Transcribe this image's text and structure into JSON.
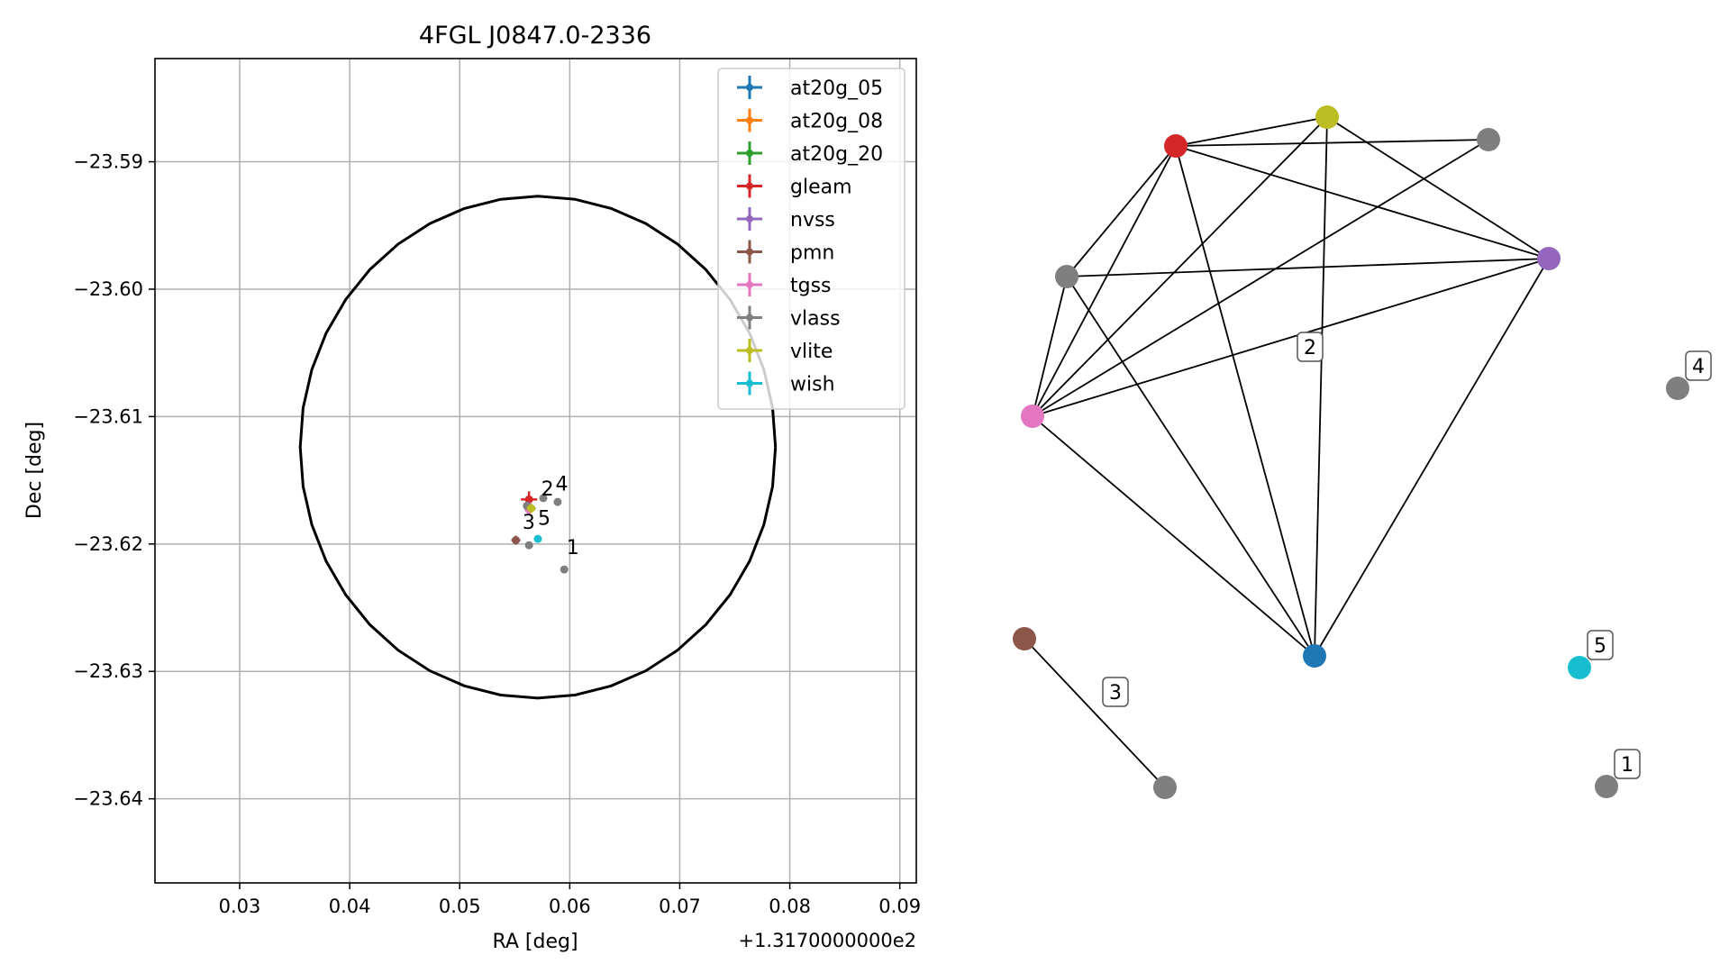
{
  "chart_data": [
    {
      "type": "scatter",
      "title": "4FGL J0847.0-2336",
      "xlabel": "RA [deg]",
      "ylabel": "Dec [deg]",
      "x_offset_label": "+1.3170000000e2",
      "xlim": [
        0.0223,
        0.0915
      ],
      "ylim": [
        -23.6466,
        -23.5819
      ],
      "xticks": [
        0.03,
        0.04,
        0.05,
        0.06,
        0.07,
        0.08,
        0.09
      ],
      "xtick_labels": [
        "0.03",
        "0.04",
        "0.05",
        "0.06",
        "0.07",
        "0.08",
        "0.09"
      ],
      "yticks": [
        -23.59,
        -23.6,
        -23.61,
        -23.62,
        -23.63,
        -23.64
      ],
      "ytick_labels": [
        "−23.59",
        "−23.60",
        "−23.61",
        "−23.62",
        "−23.63",
        "−23.64"
      ],
      "grid": true,
      "legend_position": "top-right",
      "ellipse": {
        "center_x": 0.0571,
        "center_y": -23.6124,
        "semi_x": 0.0216,
        "semi_y": 0.0197
      },
      "series": [
        {
          "name": "at20g_05",
          "color": "#1f77b4",
          "points": []
        },
        {
          "name": "at20g_08",
          "color": "#ff7f0e",
          "points": []
        },
        {
          "name": "at20g_20",
          "color": "#2ca02c",
          "points": []
        },
        {
          "name": "gleam",
          "color": "#d62728",
          "points": [
            {
              "x": 0.0563,
              "y": -23.6165
            }
          ]
        },
        {
          "name": "nvss",
          "color": "#9467bd",
          "points": [
            {
              "x": 0.0562,
              "y": -23.617
            }
          ]
        },
        {
          "name": "pmn",
          "color": "#8c564b",
          "points": [
            {
              "x": 0.0551,
              "y": -23.6197
            }
          ]
        },
        {
          "name": "tgss",
          "color": "#e377c2",
          "points": [
            {
              "x": 0.0563,
              "y": -23.6173
            }
          ]
        },
        {
          "name": "vlass",
          "color": "#7f7f7f",
          "points": [
            {
              "x": 0.0595,
              "y": -23.622
            },
            {
              "x": 0.0576,
              "y": -23.6164
            },
            {
              "x": 0.0563,
              "y": -23.6201
            },
            {
              "x": 0.0589,
              "y": -23.6167
            },
            {
              "x": 0.0561,
              "y": -23.617
            }
          ]
        },
        {
          "name": "vlite",
          "color": "#bcbd22",
          "points": [
            {
              "x": 0.0565,
              "y": -23.6172
            }
          ]
        },
        {
          "name": "wish",
          "color": "#17becf",
          "points": [
            {
              "x": 0.0571,
              "y": -23.6196
            }
          ]
        }
      ],
      "annotations": [
        {
          "text": "1",
          "x": 0.0597,
          "y": -23.6208
        },
        {
          "text": "2",
          "x": 0.0574,
          "y": -23.6162
        },
        {
          "text": "3",
          "x": 0.0557,
          "y": -23.6188
        },
        {
          "text": "4",
          "x": 0.0587,
          "y": -23.6158
        },
        {
          "text": "5",
          "x": 0.0571,
          "y": -23.6185
        }
      ]
    },
    {
      "type": "network",
      "nodes": [
        {
          "id": "red",
          "color": "#d62728"
        },
        {
          "id": "olive",
          "color": "#bcbd22"
        },
        {
          "id": "gray_top",
          "color": "#7f7f7f"
        },
        {
          "id": "gray_left",
          "color": "#7f7f7f"
        },
        {
          "id": "purple",
          "color": "#9467bd"
        },
        {
          "id": "pink",
          "color": "#e377c2"
        },
        {
          "id": "blue",
          "color": "#1f77b4"
        },
        {
          "id": "gray_4",
          "color": "#7f7f7f",
          "label": "4"
        },
        {
          "id": "brown",
          "color": "#8c564b"
        },
        {
          "id": "gray_bottom",
          "color": "#7f7f7f"
        },
        {
          "id": "cyan",
          "color": "#17becf",
          "label": "5"
        },
        {
          "id": "gray_1",
          "color": "#7f7f7f",
          "label": "1"
        }
      ],
      "edges": [
        [
          "red",
          "olive"
        ],
        [
          "red",
          "gray_top"
        ],
        [
          "red",
          "purple"
        ],
        [
          "red",
          "gray_left"
        ],
        [
          "red",
          "pink"
        ],
        [
          "red",
          "blue"
        ],
        [
          "olive",
          "purple"
        ],
        [
          "olive",
          "pink"
        ],
        [
          "olive",
          "blue"
        ],
        [
          "gray_top",
          "pink"
        ],
        [
          "gray_left",
          "purple"
        ],
        [
          "gray_left",
          "pink"
        ],
        [
          "gray_left",
          "blue"
        ],
        [
          "pink",
          "purple"
        ],
        [
          "pink",
          "blue"
        ],
        [
          "purple",
          "blue"
        ],
        [
          "brown",
          "gray_bottom"
        ]
      ],
      "cluster_labels": [
        "2",
        "3"
      ]
    }
  ]
}
